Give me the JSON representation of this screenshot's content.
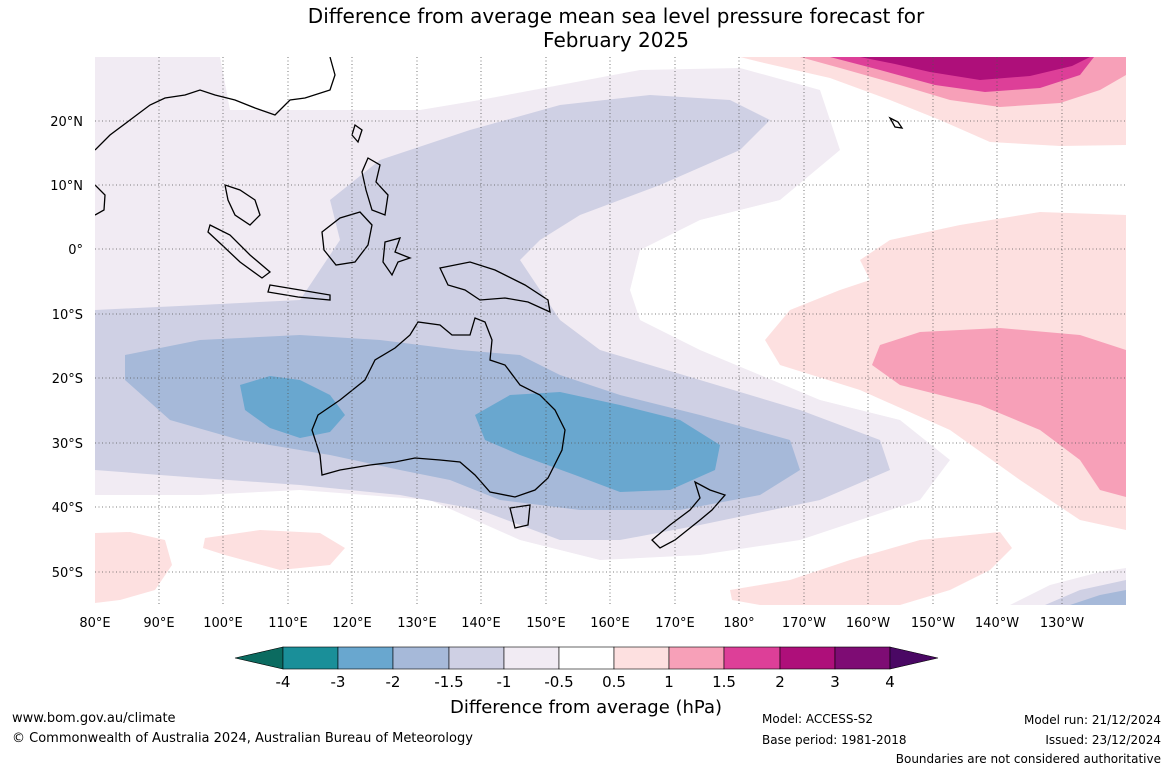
{
  "title": {
    "line1": "Difference from average mean sea level pressure forecast for",
    "line2": "February 2025"
  },
  "map": {
    "lat_labels": [
      "20°N",
      "10°N",
      "0°",
      "10°S",
      "20°S",
      "30°S",
      "40°S",
      "50°S"
    ],
    "lon_labels": [
      "80°E",
      "90°E",
      "100°E",
      "110°E",
      "120°E",
      "130°E",
      "140°E",
      "150°E",
      "160°E",
      "170°E",
      "180°",
      "170°W",
      "160°W",
      "150°W",
      "140°W",
      "130°W"
    ],
    "extent": {
      "lon": [
        80,
        240
      ],
      "lat": [
        -55,
        30
      ]
    }
  },
  "colorbar": {
    "tick_labels": [
      "-4",
      "-3",
      "-2",
      "-1.5",
      "-1",
      "-0.5",
      "0.5",
      "1",
      "1.5",
      "2",
      "3",
      "4"
    ],
    "colors": [
      "#0b6b60",
      "#1a8f99",
      "#69a7cf",
      "#a6b9d9",
      "#cfd0e4",
      "#f1ebf3",
      "#ffffff",
      "#fde0e0",
      "#f7a0b8",
      "#dd3f98",
      "#ae0f7a",
      "#7e0c74",
      "#4a0864"
    ],
    "label": "Difference from average (hPa)"
  },
  "footer": {
    "website": "www.bom.gov.au/climate",
    "copyright": "© Commonwealth of Australia 2024, Australian Bureau of Meteorology",
    "model": "Model: ACCESS-S2",
    "base_period": "Base period: 1981-2018",
    "model_run": "Model run: 21/12/2024",
    "issued": "Issued: 23/12/2024",
    "disclaimer": "Boundaries are not considered authoritative"
  }
}
